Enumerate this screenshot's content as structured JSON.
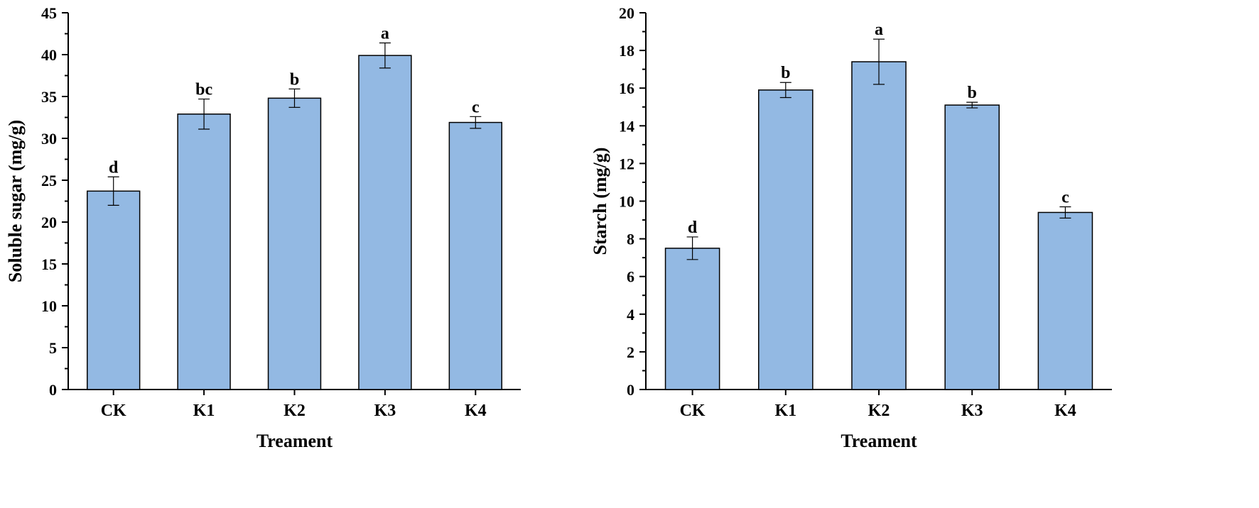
{
  "chart_data": [
    {
      "type": "bar",
      "categories": [
        "CK",
        "K1",
        "K2",
        "K3",
        "K4"
      ],
      "values": [
        23.7,
        32.9,
        34.8,
        39.9,
        31.9
      ],
      "errors": [
        1.7,
        1.8,
        1.1,
        1.5,
        0.7
      ],
      "significance": [
        "d",
        "bc",
        "b",
        "a",
        "c"
      ],
      "title": "",
      "xlabel": "Treament",
      "ylabel": "Soluble sugar (mg/g)",
      "ylim": [
        0,
        45
      ],
      "yticks": [
        0,
        5,
        10,
        15,
        20,
        25,
        30,
        35,
        40,
        45
      ],
      "bar_color": "#93b9e3",
      "grid": false,
      "legend": "none"
    },
    {
      "type": "bar",
      "categories": [
        "CK",
        "K1",
        "K2",
        "K3",
        "K4"
      ],
      "values": [
        7.5,
        15.9,
        17.4,
        15.1,
        9.4
      ],
      "errors": [
        0.6,
        0.4,
        1.2,
        0.15,
        0.3
      ],
      "significance": [
        "d",
        "b",
        "a",
        "b",
        "c"
      ],
      "title": "",
      "xlabel": "Treament",
      "ylabel": "Starch (mg/g)",
      "ylim": [
        0,
        20
      ],
      "yticks": [
        0,
        2,
        4,
        6,
        8,
        10,
        12,
        14,
        16,
        18,
        20
      ],
      "bar_color": "#93b9e3",
      "grid": false,
      "legend": "none"
    }
  ]
}
